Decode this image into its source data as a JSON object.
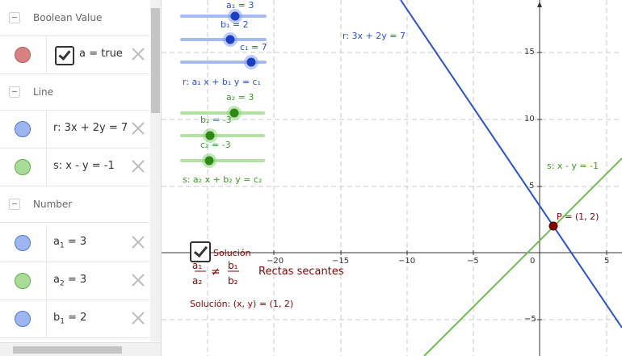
{
  "algebra": {
    "groups": {
      "boolean": "Boolean Value",
      "line": "Line",
      "number": "Number"
    },
    "items": {
      "a": "a = true",
      "r": "r: 3x + 2y = 7",
      "s": "s: x - y = -1",
      "a1": "a",
      "a1_sub": "1",
      "a1_val": " = 3",
      "a2": "a",
      "a2_sub": "2",
      "a2_val": " = 3",
      "b1": "b",
      "b1_sub": "1",
      "b1_val": " = 2"
    },
    "colors": {
      "boolean": "#d98080",
      "blue": "#7a9ee8",
      "green": "#8fd47f"
    }
  },
  "graphics": {
    "sliders": {
      "a1": "a₁ = 3",
      "b1": "b₁ = 2",
      "c1": "c₁ = 7",
      "a2": "a₂ = 3",
      "b2": "b₂ = -3",
      "c2": "c₂ = -3"
    },
    "eq1": "r: a₁ x + b₁ y = c₁",
    "eq2": "s: a₂ x + b₂ y = c₂",
    "line_r_label": "r: 3x + 2y = 7",
    "line_s_label": "s: x - y = -1",
    "point_label": "P = (1, 2)",
    "checkbox_label": "Solución",
    "ratio": {
      "n1": "a₁",
      "d1": "a₂",
      "neq": "≠",
      "n2": "b₁",
      "d2": "b₂"
    },
    "result": "Rectas secantes",
    "solution": "Solución:  (x, y) = (1, 2)",
    "x_ticks": [
      "−20",
      "−15",
      "−10",
      "−5",
      "0",
      "5"
    ],
    "y_ticks": [
      "15",
      "10",
      "5",
      "−5"
    ],
    "colors": {
      "blue": "#2b50d6",
      "green": "#3c9a22",
      "dark_red": "#8b0000"
    }
  }
}
